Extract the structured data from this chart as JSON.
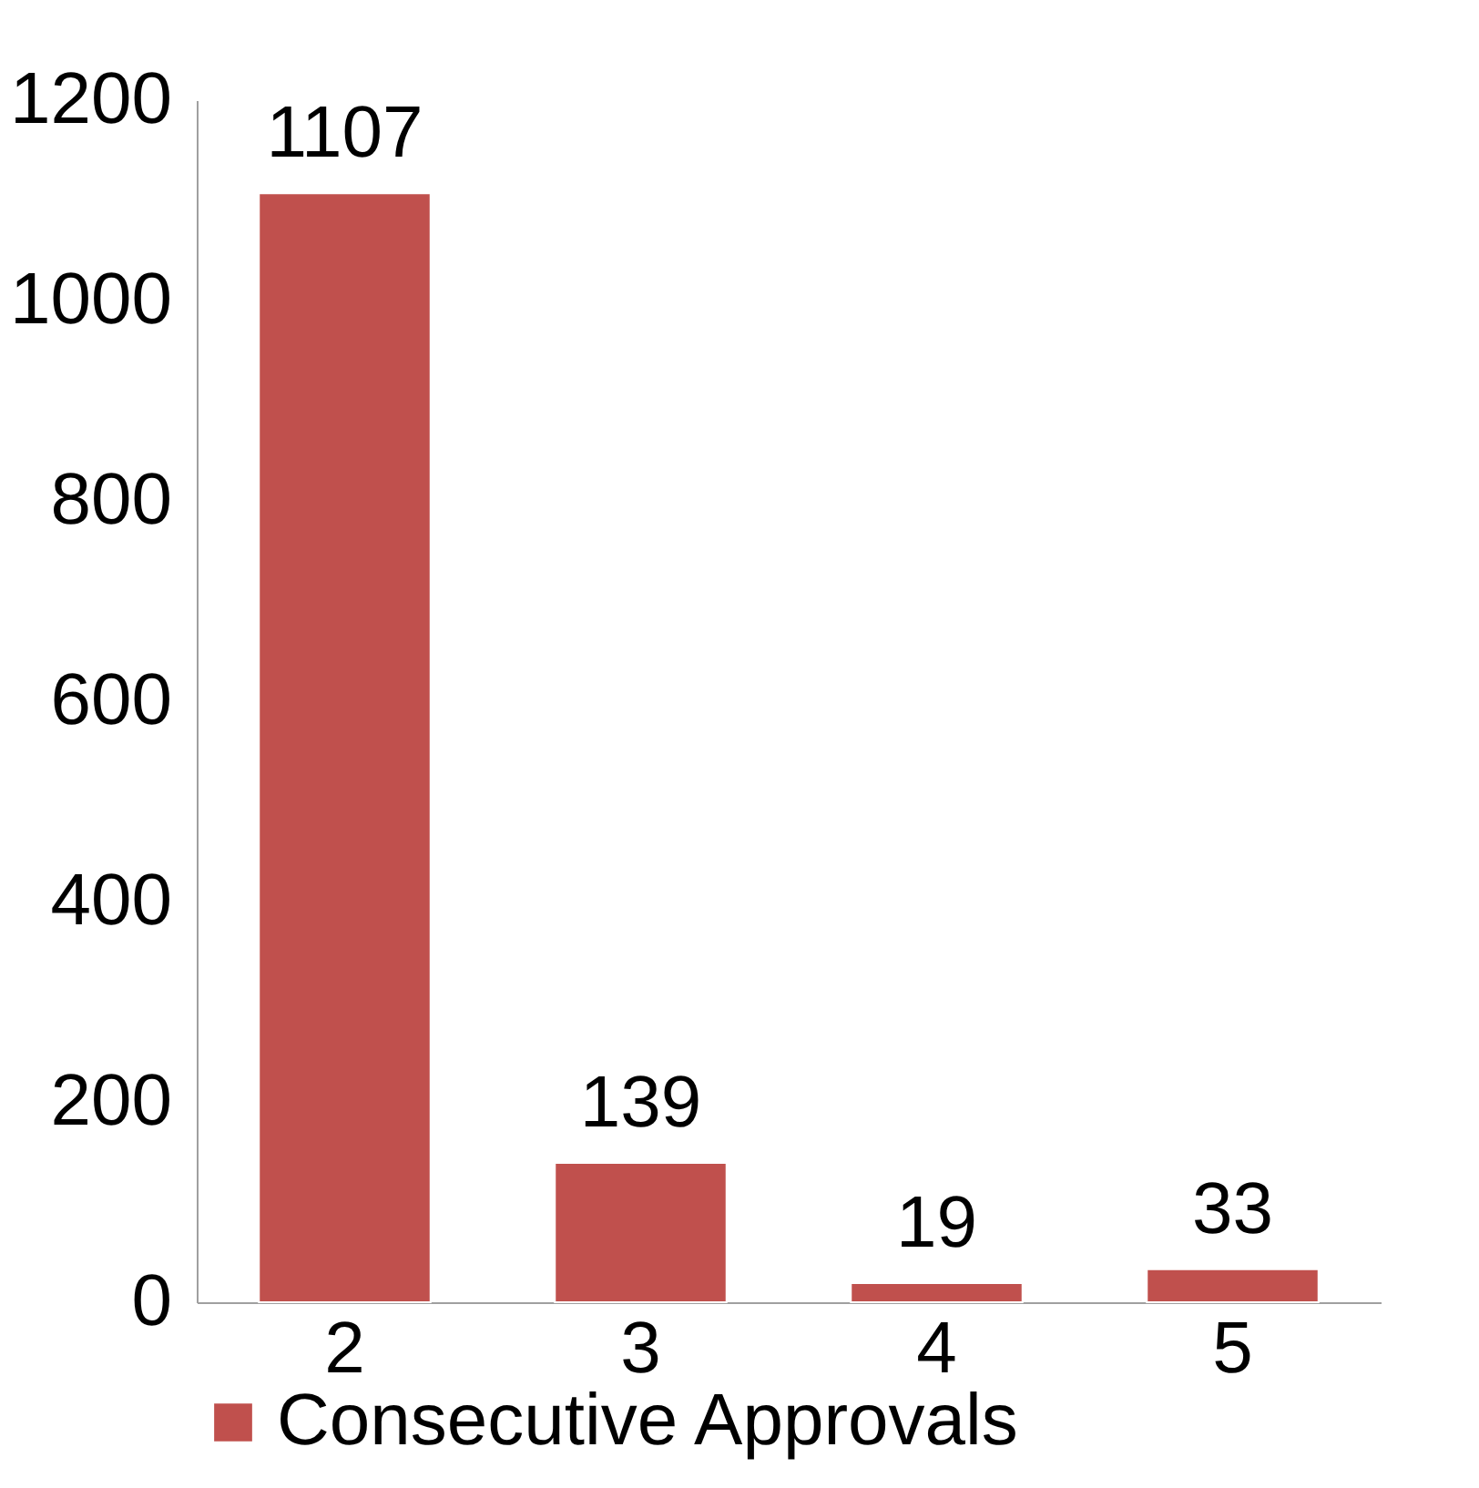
{
  "chart_data": {
    "type": "bar",
    "categories": [
      "2",
      "3",
      "4",
      "5"
    ],
    "series": [
      {
        "name": "Consecutive Approvals",
        "color": "#c0504d",
        "values": [
          1107,
          139,
          19,
          33
        ]
      }
    ],
    "ylim": [
      0,
      1200
    ],
    "yticks": [
      0,
      200,
      400,
      600,
      800,
      1000,
      1200
    ],
    "data_labels": true,
    "grid": false,
    "legend": "bottom"
  }
}
